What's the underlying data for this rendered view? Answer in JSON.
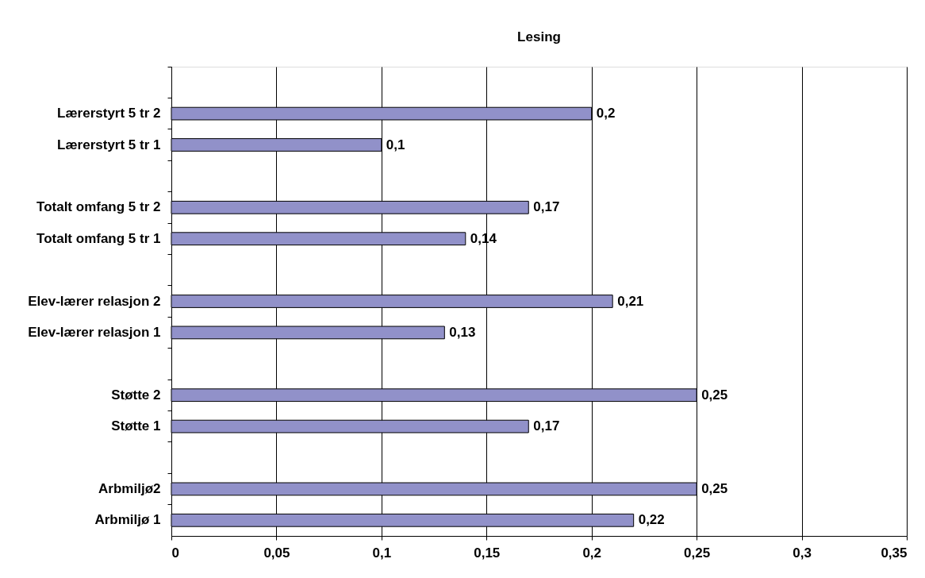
{
  "chart_data": {
    "type": "bar",
    "orientation": "horizontal",
    "title": "Lesing",
    "categories": [
      null,
      "Lærerstyrt 5 tr 2",
      "Lærerstyrt 5 tr 1",
      null,
      "Totalt omfang 5 tr 2",
      "Totalt omfang 5 tr 1",
      null,
      "Elev-lærer relasjon 2",
      "Elev-lærer relasjon 1",
      null,
      "Støtte 2",
      "Støtte 1",
      null,
      "Arbmiljø2",
      "Arbmiljø 1"
    ],
    "values": [
      null,
      0.2,
      0.1,
      null,
      0.17,
      0.14,
      null,
      0.21,
      0.13,
      null,
      0.25,
      0.17,
      null,
      0.25,
      0.22
    ],
    "value_labels": [
      null,
      "0,2",
      "0,1",
      null,
      "0,17",
      "0,14",
      null,
      "0,21",
      "0,13",
      null,
      "0,25",
      "0,17",
      null,
      "0,25",
      "0,22"
    ],
    "color": "#9191c9",
    "xlim": [
      0,
      0.35
    ],
    "xticks": [
      0,
      {
        "value": 0.05,
        "label": "0,05"
      },
      {
        "value": 0.1,
        "label": "0,1"
      },
      {
        "value": 0.15,
        "label": "0,15"
      },
      {
        "value": 0.2,
        "label": "0,2"
      },
      {
        "value": 0.25,
        "label": "0,25"
      },
      {
        "value": 0.3,
        "label": "0,3"
      },
      {
        "value": 0.35,
        "label": "0,35"
      }
    ],
    "grid": "x"
  }
}
